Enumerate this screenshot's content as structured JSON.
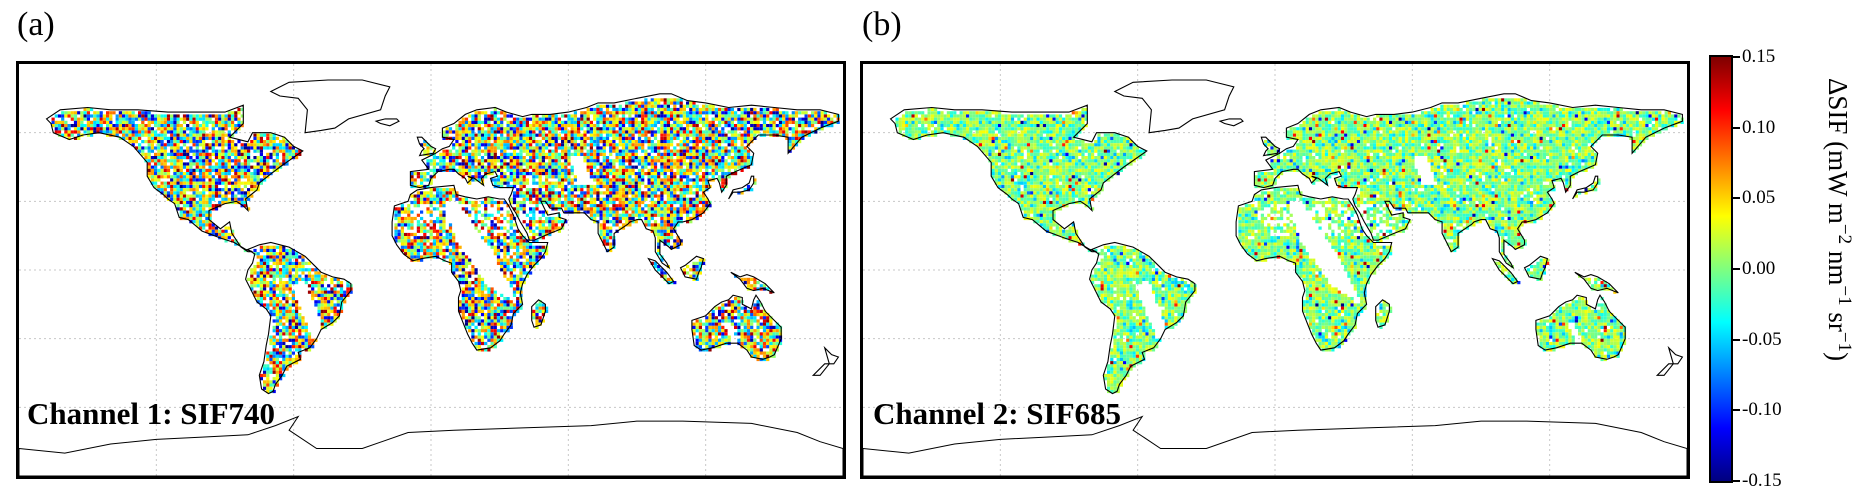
{
  "panels": [
    {
      "letter": "(a)",
      "channel_label": "Channel 1: SIF740",
      "noise": "high"
    },
    {
      "letter": "(b)",
      "channel_label": "Channel 2: SIF685",
      "noise": "low"
    }
  ],
  "colorbar": {
    "title_main": "ΔSIF (mW m",
    "title_exp1": "−2",
    "title_mid1": " nm",
    "title_exp2": "−1",
    "title_mid2": " sr",
    "title_exp3": "−1",
    "title_end": ")",
    "ticks": [
      "0.15",
      "0.10",
      "0.05",
      "0.00",
      "-0.05",
      "-0.10",
      "-0.15"
    ],
    "range": [
      -0.15,
      0.15
    ],
    "colormap": "jet",
    "colors": [
      "#00007f",
      "#0000ff",
      "#007fff",
      "#00ffff",
      "#7fff7f",
      "#ffff00",
      "#ff7f00",
      "#ff0000",
      "#7f0000"
    ]
  },
  "grid": "dotted",
  "projection": "equirectangular"
}
